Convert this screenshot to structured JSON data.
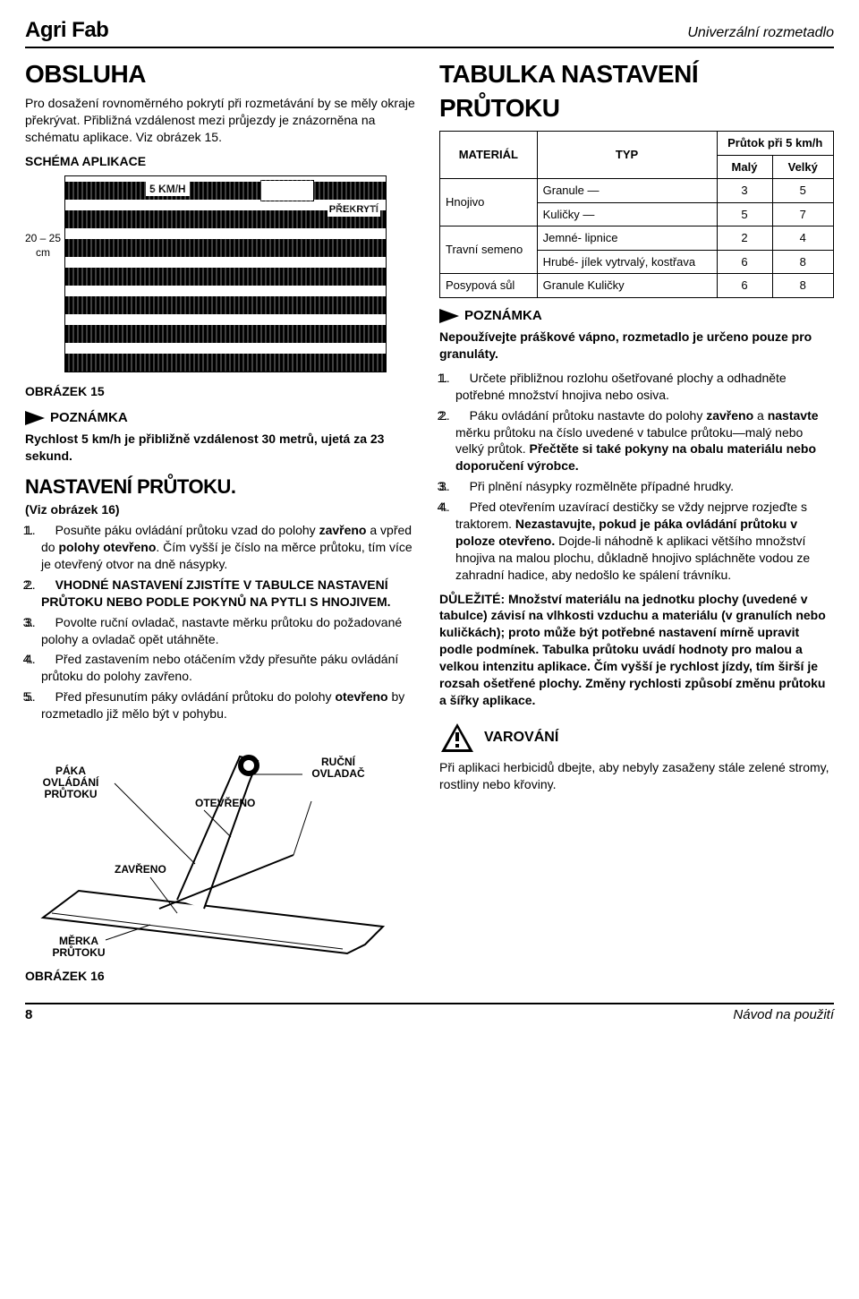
{
  "header": {
    "brand": "Agri Fab",
    "product": "Univerzální rozmetadlo"
  },
  "footer": {
    "page": "8",
    "title": "Návod na použití"
  },
  "left": {
    "h1": "OBSLUHA",
    "intro": "Pro dosažení rovnoměrného pokrytí při rozmetávání by se měly okraje překrývat. Přibližná vzdálenost mezi průjezdy je znázorněna na schématu aplikace. Viz obrázek 15.",
    "schema_title": "SCHÉMA APLIKACE",
    "schema": {
      "side_label": "20 – 25 cm",
      "speed_label": "5 KM/H",
      "overlap_label": "PŘEKRYTÍ"
    },
    "fig15": "OBRÁZEK 15",
    "note_label": "POZNÁMKA",
    "note_text": "Rychlost 5 km/h je přibližně vzdálenost 30 metrů, ujetá za 23 sekund.",
    "h2": "NASTAVENÍ PRŮTOKU.",
    "see_fig": "(Viz obrázek 16)",
    "steps": [
      "Posuňte páku ovládání průtoku vzad do polohy <b>zavřeno</b> a vpřed do <b>polohy otevřeno</b>. Čím vyšší je číslo na měrce průtoku, tím více je otevřený otvor na dně násypky.",
      "<b>VHODNÉ NASTAVENÍ ZJISTÍTE V TABULCE NASTAVENÍ PRŮTOKU NEBO PODLE POKYNŮ NA PYTLI S HNOJIVEM.</b>",
      "Povolte ruční ovladač, nastavte měrku průtoku do požadované polohy a ovladač opět utáhněte.",
      "Před zastavením nebo otáčením vždy přesuňte páku ovládání průtoku do polohy zavřeno.",
      "Před přesunutím páky ovládání průtoku do polohy <b>otevřeno</b> by rozmetadlo již mělo být v pohybu."
    ],
    "fig16_labels": {
      "lever": "PÁKA OVLÁDÁNÍ PRŮTOKU",
      "closed": "ZAVŘENO",
      "open": "OTEVŘENO",
      "knob": "RUČNÍ OVLADAČ",
      "gauge": "MĚRKA PRŮTOKU"
    },
    "fig16": "OBRÁZEK 16"
  },
  "right": {
    "h1a": "TABULKA NASTAVENÍ",
    "h1b": "PRŮTOKU",
    "table": {
      "col_material": "MATERIÁL",
      "col_type": "TYP",
      "col_flow": "Průtok při 5 km/h",
      "col_small": "Malý",
      "col_large": "Velký",
      "rows": [
        {
          "material": "Hnojivo",
          "type": "Granule —",
          "small": "3",
          "large": "5"
        },
        {
          "material": "",
          "type": "Kuličky —",
          "small": "5",
          "large": "7"
        },
        {
          "material": "Travní semeno",
          "type": "Jemné- lipnice",
          "small": "2",
          "large": "4"
        },
        {
          "material": "",
          "type": "Hrubé- jílek vytrvalý, kostřava",
          "small": "6",
          "large": "8"
        },
        {
          "material": "Posypová sůl",
          "type": "Granule Kuličky",
          "small": "6",
          "large": "8"
        }
      ]
    },
    "note_label": "POZNÁMKA",
    "note_text": "Nepoužívejte práškové vápno, rozmetadlo je určeno pouze pro granuláty.",
    "steps": [
      "Určete přibližnou rozlohu ošetřované plochy a odhadněte potřebné množství hnojiva nebo osiva.",
      "Páku ovládání průtoku nastavte do polohy <b>zavřeno</b> a <b>nastavte</b> měrku průtoku na číslo uvedené v tabulce průtoku—malý nebo velký průtok. <b>Přečtěte si také pokyny na obalu materiálu nebo doporučení výrobce.</b>",
      "Při plnění násypky rozmělněte případné hrudky.",
      "Před otevřením uzavírací destičky se vždy nejprve rozjeďte s traktorem. <b>Nezastavujte, pokud je páka ovládání průtoku v poloze otevřeno.</b> Dojde-li náhodně k aplikaci většího množství hnojiva na malou plochu, důkladně hnojivo spláchněte vodou ze zahradní hadice, aby nedošlo ke spálení trávníku."
    ],
    "important": "DŮLEŽITÉ: Množství materiálu na jednotku plochy (uvedené v tabulce) závisí na vlhkosti vzduchu a materiálu (v granulích nebo kuličkách); proto může být potřebné nastavení mírně upravit podle podmínek. Tabulka průtoku uvádí hodnoty pro malou a velkou intenzitu aplikace. Čím vyšší je rychlost jízdy, tím širší je rozsah ošetřené plochy. Změny rychlosti způsobí změnu průtoku a šířky aplikace.",
    "warn_label": "VAROVÁNÍ",
    "warn_text": "Při aplikaci herbicidů dbejte, aby nebyly zasaženy stále zelené stromy, rostliny nebo křoviny."
  }
}
